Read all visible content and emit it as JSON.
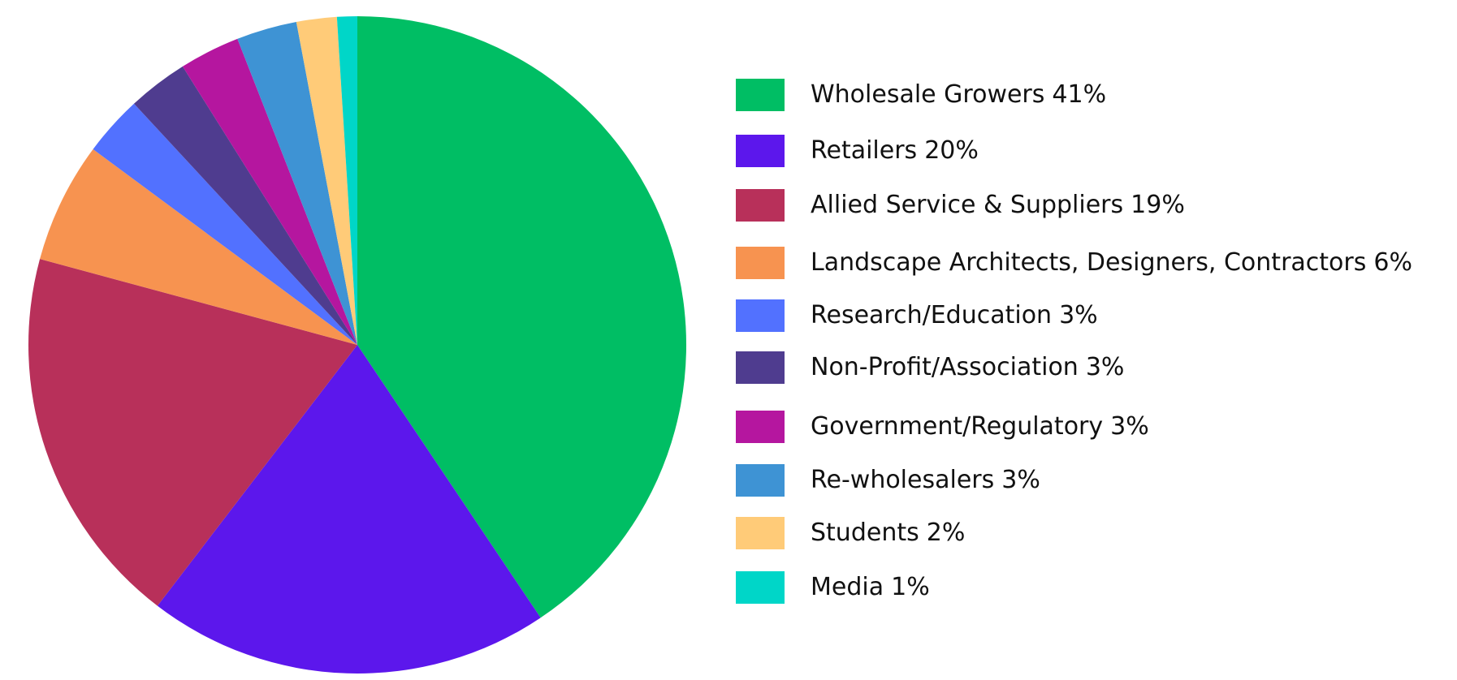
{
  "chart_data": {
    "type": "pie",
    "categories": [
      "Wholesale Growers",
      "Retailers",
      "Allied Service & Suppliers",
      "Landscape Architects, Designers, Contractors",
      "Research/Education",
      "Non-Profit/Association",
      "Government/Regulatory",
      "Re-wholesalers",
      "Students",
      "Media"
    ],
    "values": [
      41,
      20,
      19,
      6,
      3,
      3,
      3,
      3,
      2,
      1
    ],
    "value_labels": [
      "41%",
      "20%",
      "19%",
      "6%",
      "3%",
      "3%",
      "3%",
      "3%",
      "2%",
      "1%"
    ],
    "colors": [
      "#00be64",
      "#5c17ec",
      "#b8305a",
      "#f79350",
      "#5271ff",
      "#4f3c8f",
      "#b5169f",
      "#3e93d4",
      "#ffcb78",
      "#00d6c8"
    ],
    "legend": "right"
  }
}
